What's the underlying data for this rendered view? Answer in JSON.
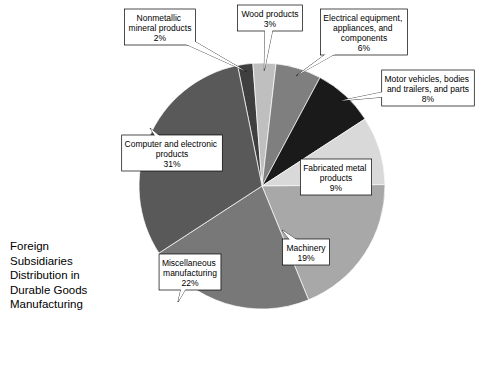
{
  "chart_data": {
    "type": "pie",
    "title": "Foreign Subsidiaries Distribution in Durable Goods Manufacturing",
    "categories": [
      "Nonmetallic mineral products",
      "Wood products",
      "Electrical equipment, appliances, and components",
      "Motor vehicles, bodies and trailers, and parts",
      "Fabricated metal products",
      "Machinery",
      "Miscellaneous manufacturing",
      "Computer and electronic products"
    ],
    "values": [
      2,
      3,
      6,
      8,
      9,
      19,
      22,
      31
    ],
    "value_labels": [
      "2%",
      "3%",
      "6%",
      "8%",
      "9%",
      "19%",
      "22%",
      "31%"
    ],
    "colors": [
      "#3f3f3f",
      "#bfbfbf",
      "#7f7f7f",
      "#1a1a1a",
      "#d9d9d9",
      "#a8a8a8",
      "#787878",
      "#595959"
    ],
    "data_labels": true
  }
}
